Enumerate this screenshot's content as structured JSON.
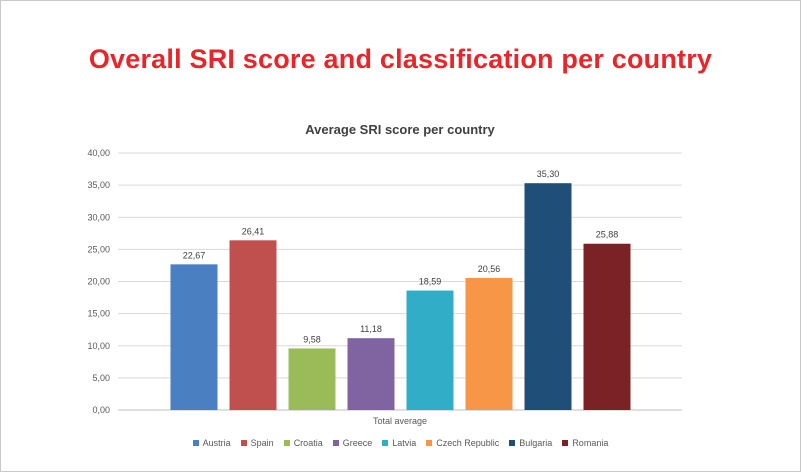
{
  "slide": {
    "title": "Overall SRI score and classification per country"
  },
  "chart_data": {
    "type": "bar",
    "title": "Average SRI score per country",
    "xlabel": "Total average",
    "ylabel": "",
    "ylim": [
      0,
      40
    ],
    "ytick_step": 5,
    "ytick_labels": [
      "0,00",
      "5,00",
      "10,00",
      "15,00",
      "20,00",
      "25,00",
      "30,00",
      "35,00",
      "40,00"
    ],
    "grid": true,
    "legend_position": "bottom",
    "categories": [
      "Total average"
    ],
    "series": [
      {
        "name": "Austria",
        "value": 22.67,
        "label": "22,67",
        "color": "#4a7fc1"
      },
      {
        "name": "Spain",
        "value": 26.41,
        "label": "26,41",
        "color": "#c0504d"
      },
      {
        "name": "Croatia",
        "value": 9.58,
        "label": "9,58",
        "color": "#9bbb59"
      },
      {
        "name": "Greece",
        "value": 11.18,
        "label": "11,18",
        "color": "#8064a2"
      },
      {
        "name": "Latvia",
        "value": 18.59,
        "label": "18,59",
        "color": "#31adc7"
      },
      {
        "name": "Czech Republic",
        "value": 20.56,
        "label": "20,56",
        "color": "#f79646"
      },
      {
        "name": "Bulgaria",
        "value": 35.3,
        "label": "35,30",
        "color": "#1f4e79"
      },
      {
        "name": "Romania",
        "value": 25.88,
        "label": "25,88",
        "color": "#7b2226"
      }
    ]
  }
}
